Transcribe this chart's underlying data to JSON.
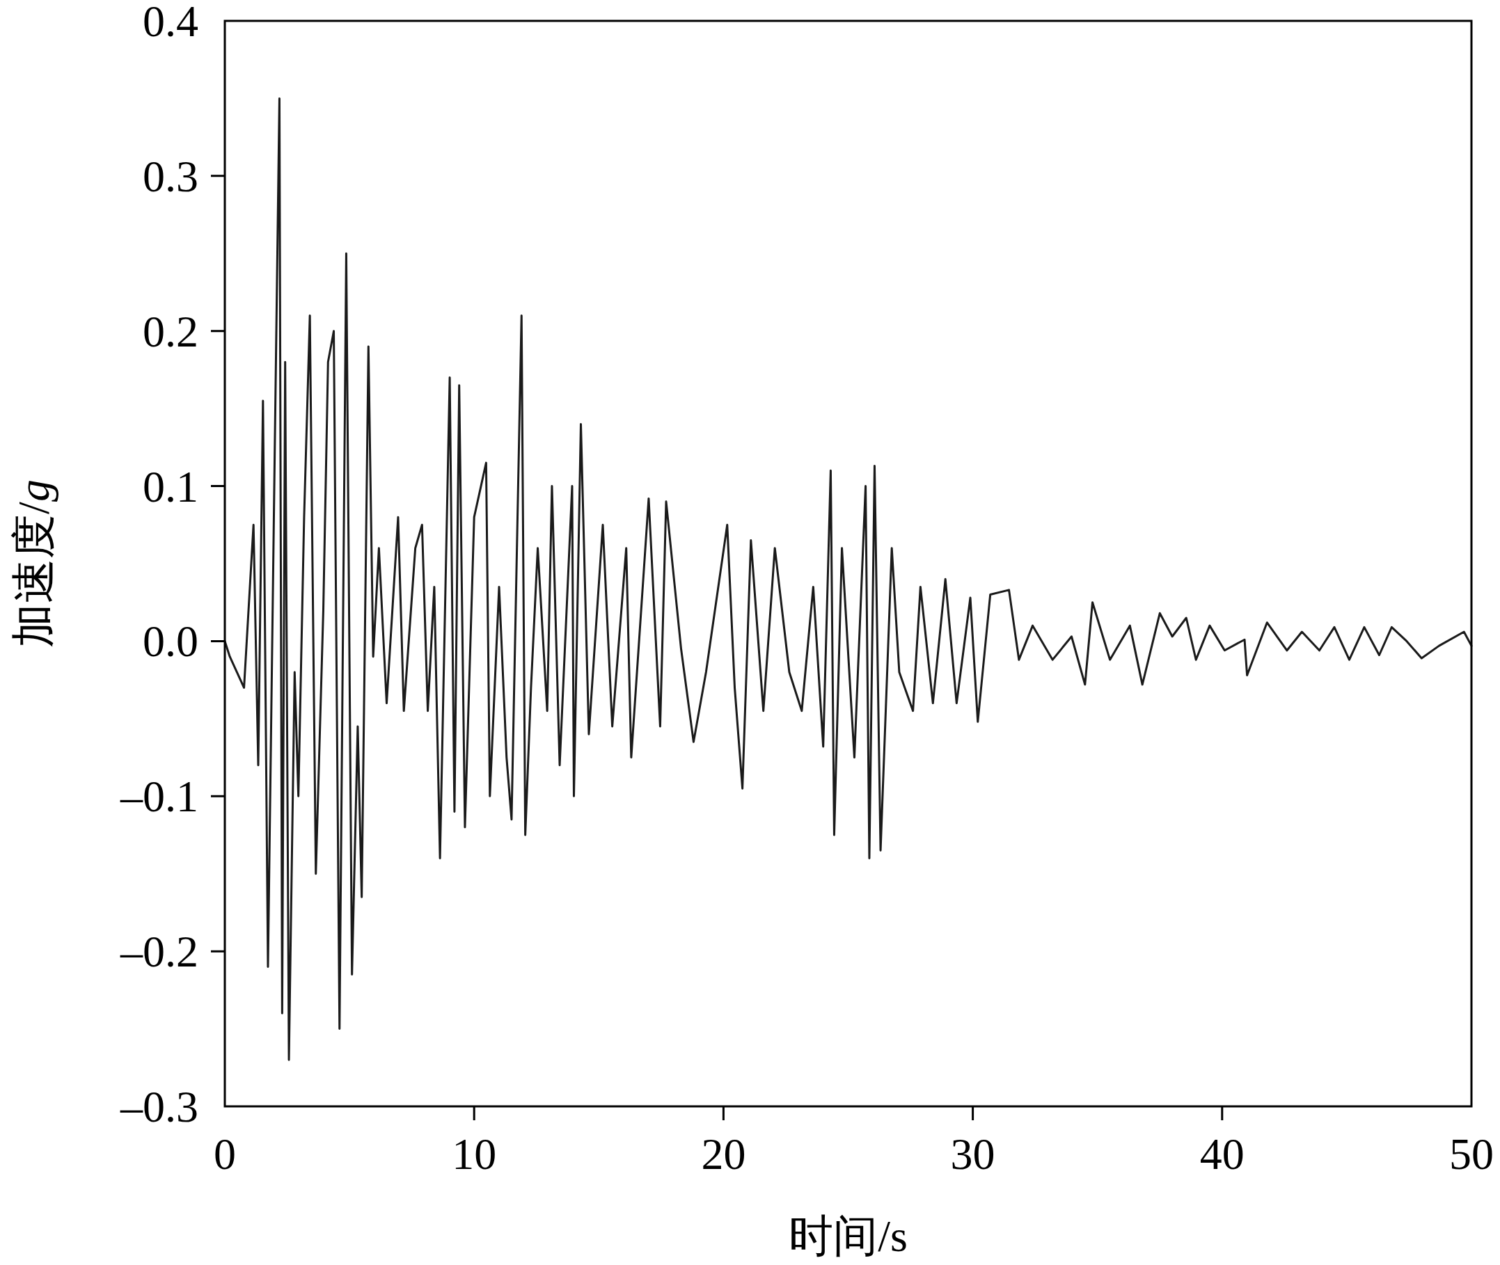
{
  "chart_data": {
    "type": "line",
    "xlabel": "时间/s",
    "ylabel": "加速度/*g*",
    "xlim": [
      0,
      50
    ],
    "ylim": [
      -0.3,
      0.4
    ],
    "xticks": [
      0,
      10,
      20,
      30,
      40,
      50
    ],
    "yticks": [
      {
        "value": -0.3,
        "label": "–0.3"
      },
      {
        "value": -0.2,
        "label": "–0.2"
      },
      {
        "value": -0.1,
        "label": "–0.1"
      },
      {
        "value": 0,
        "label": "0.0"
      },
      0.1,
      0.2,
      0.3,
      0.4
    ],
    "grid": false,
    "marker": "none",
    "line_style": "solid",
    "series": [
      {
        "color": "#1a1a1a",
        "x": [
          0,
          0.2,
          0.77,
          1.15,
          1.34,
          1.53,
          1.73,
          2.0,
          2.19,
          2.3,
          2.42,
          2.57,
          2.8,
          2.95,
          3.18,
          3.41,
          3.65,
          3.95,
          4.14,
          4.37,
          4.6,
          4.87,
          5.1,
          5.33,
          5.49,
          5.76,
          5.95,
          6.18,
          6.49,
          6.95,
          7.18,
          7.64,
          7.91,
          8.14,
          8.4,
          8.63,
          9.02,
          9.21,
          9.4,
          9.63,
          10.0,
          10.48,
          10.63,
          11.0,
          11.3,
          11.5,
          11.9,
          12.05,
          12.28,
          12.55,
          12.93,
          13.12,
          13.43,
          13.93,
          14.0,
          14.28,
          14.6,
          15.16,
          15.54,
          16.1,
          16.3,
          17.0,
          17.46,
          17.7,
          18.3,
          18.8,
          19.3,
          20.15,
          20.45,
          20.76,
          21.1,
          21.6,
          22.06,
          22.64,
          23.14,
          23.6,
          24.0,
          24.3,
          24.44,
          24.75,
          25.25,
          25.7,
          25.85,
          26.06,
          26.3,
          26.75,
          27.05,
          27.6,
          27.9,
          28.4,
          28.9,
          29.35,
          29.9,
          30.2,
          30.7,
          31.45,
          31.85,
          32.4,
          33.2,
          33.96,
          34.5,
          34.8,
          35.5,
          36.3,
          36.8,
          37.5,
          38.0,
          38.56,
          38.95,
          39.5,
          40.1,
          40.9,
          41.0,
          41.8,
          42.6,
          43.2,
          43.9,
          44.5,
          45.1,
          45.7,
          46.3,
          46.8,
          47.4,
          48.0,
          48.7,
          49.7,
          50
        ],
        "values": [
          0,
          -0.01,
          -0.03,
          0.075,
          -0.08,
          0.155,
          -0.21,
          0.12,
          0.35,
          -0.24,
          0.18,
          -0.27,
          -0.02,
          -0.1,
          0.08,
          0.21,
          -0.15,
          0.02,
          0.18,
          0.2,
          -0.25,
          0.25,
          -0.215,
          -0.055,
          -0.165,
          0.19,
          -0.01,
          0.06,
          -0.04,
          0.08,
          -0.045,
          0.06,
          0.075,
          -0.045,
          0.035,
          -0.14,
          0.17,
          -0.11,
          0.165,
          -0.12,
          0.08,
          0.115,
          -0.1,
          0.035,
          -0.075,
          -0.115,
          0.21,
          -0.125,
          -0.03,
          0.06,
          -0.045,
          0.1,
          -0.08,
          0.1,
          -0.1,
          0.14,
          -0.06,
          0.075,
          -0.055,
          0.06,
          -0.075,
          0.092,
          -0.055,
          0.09,
          -0.005,
          -0.065,
          -0.02,
          0.075,
          -0.03,
          -0.095,
          0.065,
          -0.045,
          0.06,
          -0.02,
          -0.045,
          0.035,
          -0.068,
          0.11,
          -0.125,
          0.06,
          -0.075,
          0.1,
          -0.14,
          0.113,
          -0.135,
          0.06,
          -0.02,
          -0.045,
          0.035,
          -0.04,
          0.04,
          -0.04,
          0.028,
          -0.052,
          0.03,
          0.033,
          -0.012,
          0.01,
          -0.012,
          0.003,
          -0.028,
          0.025,
          -0.012,
          0.01,
          -0.028,
          0.018,
          0.003,
          0.015,
          -0.012,
          0.01,
          -0.006,
          0.001,
          -0.022,
          0.012,
          -0.006,
          0.006,
          -0.006,
          0.009,
          -0.012,
          0.009,
          -0.009,
          0.009,
          0,
          -0.011,
          -0.003,
          0.006,
          -0.003
        ]
      }
    ]
  }
}
